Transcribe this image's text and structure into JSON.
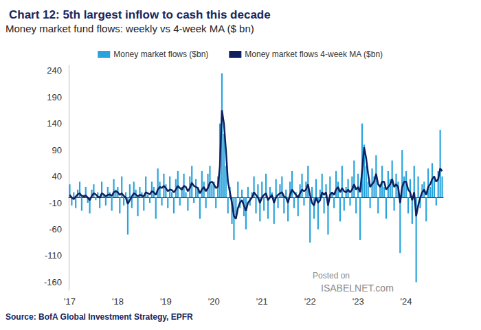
{
  "chart_data": {
    "type": "bar",
    "title": "Chart 12: 5th largest inflow to cash this decade",
    "subtitle": "Money market fund flows: weekly vs 4-week MA ($ bn)",
    "source": "Source: BofA Global Investment Strategy, EPFR",
    "annotations": [
      "Posted on",
      "ISABELNET.com"
    ],
    "categories": [
      "'17",
      null,
      null,
      null,
      null,
      null,
      null,
      null,
      null,
      null,
      null,
      null,
      null,
      null,
      null,
      null,
      null,
      null,
      null,
      null,
      null,
      null,
      null,
      null,
      "'18",
      null,
      null,
      null,
      null,
      null,
      null,
      null,
      null,
      null,
      null,
      null,
      null,
      null,
      null,
      null,
      null,
      null,
      null,
      null,
      null,
      null,
      null,
      null,
      "'19",
      null,
      null,
      null,
      null,
      null,
      null,
      null,
      null,
      null,
      null,
      null,
      null,
      null,
      null,
      null,
      null,
      null,
      null,
      null,
      null,
      null,
      null,
      null,
      "'20",
      null,
      null,
      null,
      null,
      null,
      null,
      null,
      null,
      null,
      null,
      null,
      null,
      null,
      null,
      null,
      null,
      null,
      null,
      null,
      null,
      null,
      null,
      null,
      "'21",
      null,
      null,
      null,
      null,
      null,
      null,
      null,
      null,
      null,
      null,
      null,
      null,
      null,
      null,
      null,
      null,
      null,
      null,
      null,
      null,
      null,
      null,
      null,
      "'22",
      null,
      null,
      null,
      null,
      null,
      null,
      null,
      null,
      null,
      null,
      null,
      null,
      null,
      null,
      null,
      null,
      null,
      null,
      null,
      null,
      null,
      null,
      null,
      "'23",
      null,
      null,
      null,
      null,
      null,
      null,
      null,
      null,
      null,
      null,
      null,
      null,
      null,
      null,
      null,
      null,
      null,
      null,
      null,
      null,
      null,
      null,
      null,
      "'24",
      null,
      null,
      null,
      null,
      null,
      null,
      null,
      null,
      null,
      null,
      null,
      null,
      null,
      null,
      null,
      null,
      null,
      null
    ],
    "series": [
      {
        "name": "Money market flows ($bn)",
        "type": "bar",
        "color": "#29a3dc",
        "values": [
          25,
          -15,
          10,
          -20,
          15,
          30,
          -25,
          5,
          20,
          -10,
          -30,
          15,
          25,
          -5,
          10,
          -20,
          30,
          5,
          -15,
          20,
          10,
          -25,
          35,
          15,
          20,
          -30,
          40,
          -15,
          10,
          -70,
          25,
          -20,
          30,
          15,
          -35,
          20,
          10,
          -25,
          40,
          5,
          -10,
          30,
          20,
          -40,
          55,
          30,
          -15,
          45,
          25,
          -20,
          40,
          10,
          -30,
          35,
          50,
          -15,
          20,
          45,
          10,
          -25,
          40,
          60,
          -10,
          35,
          20,
          -40,
          50,
          30,
          -20,
          45,
          60,
          25,
          30,
          -20,
          40,
          140,
          235,
          120,
          60,
          -30,
          20,
          -50,
          -80,
          -40,
          30,
          -20,
          15,
          -35,
          -60,
          20,
          -15,
          10,
          40,
          -30,
          25,
          -45,
          30,
          -25,
          45,
          -40,
          20,
          10,
          -50,
          35,
          -20,
          25,
          40,
          -30,
          15,
          -45,
          30,
          50,
          -20,
          10,
          -35,
          25,
          45,
          -15,
          30,
          60,
          -85,
          20,
          -40,
          35,
          -60,
          15,
          45,
          -30,
          25,
          -70,
          40,
          10,
          -20,
          50,
          30,
          -45,
          60,
          -25,
          20,
          35,
          -15,
          40,
          70,
          -30,
          45,
          -80,
          140,
          100,
          60,
          30,
          -20,
          55,
          40,
          80,
          -30,
          25,
          60,
          20,
          -40,
          50,
          35,
          70,
          -25,
          45,
          30,
          -105,
          90,
          40,
          50,
          -30,
          35,
          -50,
          60,
          -160,
          40,
          -20,
          25,
          30,
          -45,
          55,
          20,
          65,
          35,
          -15,
          50,
          128,
          40
        ]
      },
      {
        "name": "Money market flows 4-week MA ($bn)",
        "type": "line",
        "color": "#0d1f5e",
        "values": [
          5,
          0,
          -3,
          2,
          6,
          8,
          3,
          2,
          4,
          0,
          -5,
          3,
          8,
          6,
          2,
          0,
          8,
          6,
          2,
          5,
          6,
          3,
          10,
          12,
          10,
          5,
          8,
          3,
          0,
          -12,
          -5,
          2,
          8,
          6,
          2,
          5,
          4,
          2,
          10,
          8,
          6,
          12,
          10,
          5,
          15,
          20,
          18,
          22,
          18,
          12,
          15,
          14,
          10,
          15,
          22,
          18,
          15,
          22,
          20,
          12,
          18,
          28,
          22,
          20,
          18,
          8,
          15,
          20,
          12,
          18,
          28,
          30,
          25,
          18,
          20,
          60,
          165,
          140,
          90,
          30,
          10,
          -10,
          -35,
          -40,
          -20,
          -10,
          -5,
          -15,
          -25,
          -10,
          -5,
          0,
          10,
          5,
          0,
          -10,
          0,
          5,
          8,
          -5,
          0,
          5,
          -10,
          0,
          5,
          8,
          10,
          2,
          0,
          -10,
          5,
          15,
          10,
          5,
          0,
          8,
          15,
          12,
          15,
          25,
          5,
          -10,
          -15,
          0,
          -10,
          -5,
          10,
          5,
          10,
          -15,
          5,
          10,
          5,
          15,
          20,
          10,
          18,
          12,
          10,
          15,
          10,
          15,
          25,
          15,
          20,
          10,
          50,
          95,
          75,
          45,
          20,
          25,
          30,
          45,
          25,
          20,
          30,
          30,
          15,
          20,
          25,
          35,
          20,
          25,
          20,
          -10,
          20,
          30,
          30,
          15,
          10,
          -5,
          10,
          -35,
          -15,
          0,
          10,
          15,
          5,
          20,
          25,
          35,
          40,
          30,
          35,
          55,
          50
        ]
      }
    ],
    "ylim": [
      -175,
      250
    ],
    "yticks": [
      -160,
      -110,
      -60,
      -10,
      40,
      90,
      140,
      190,
      240
    ],
    "grid": false,
    "legend": "top"
  }
}
